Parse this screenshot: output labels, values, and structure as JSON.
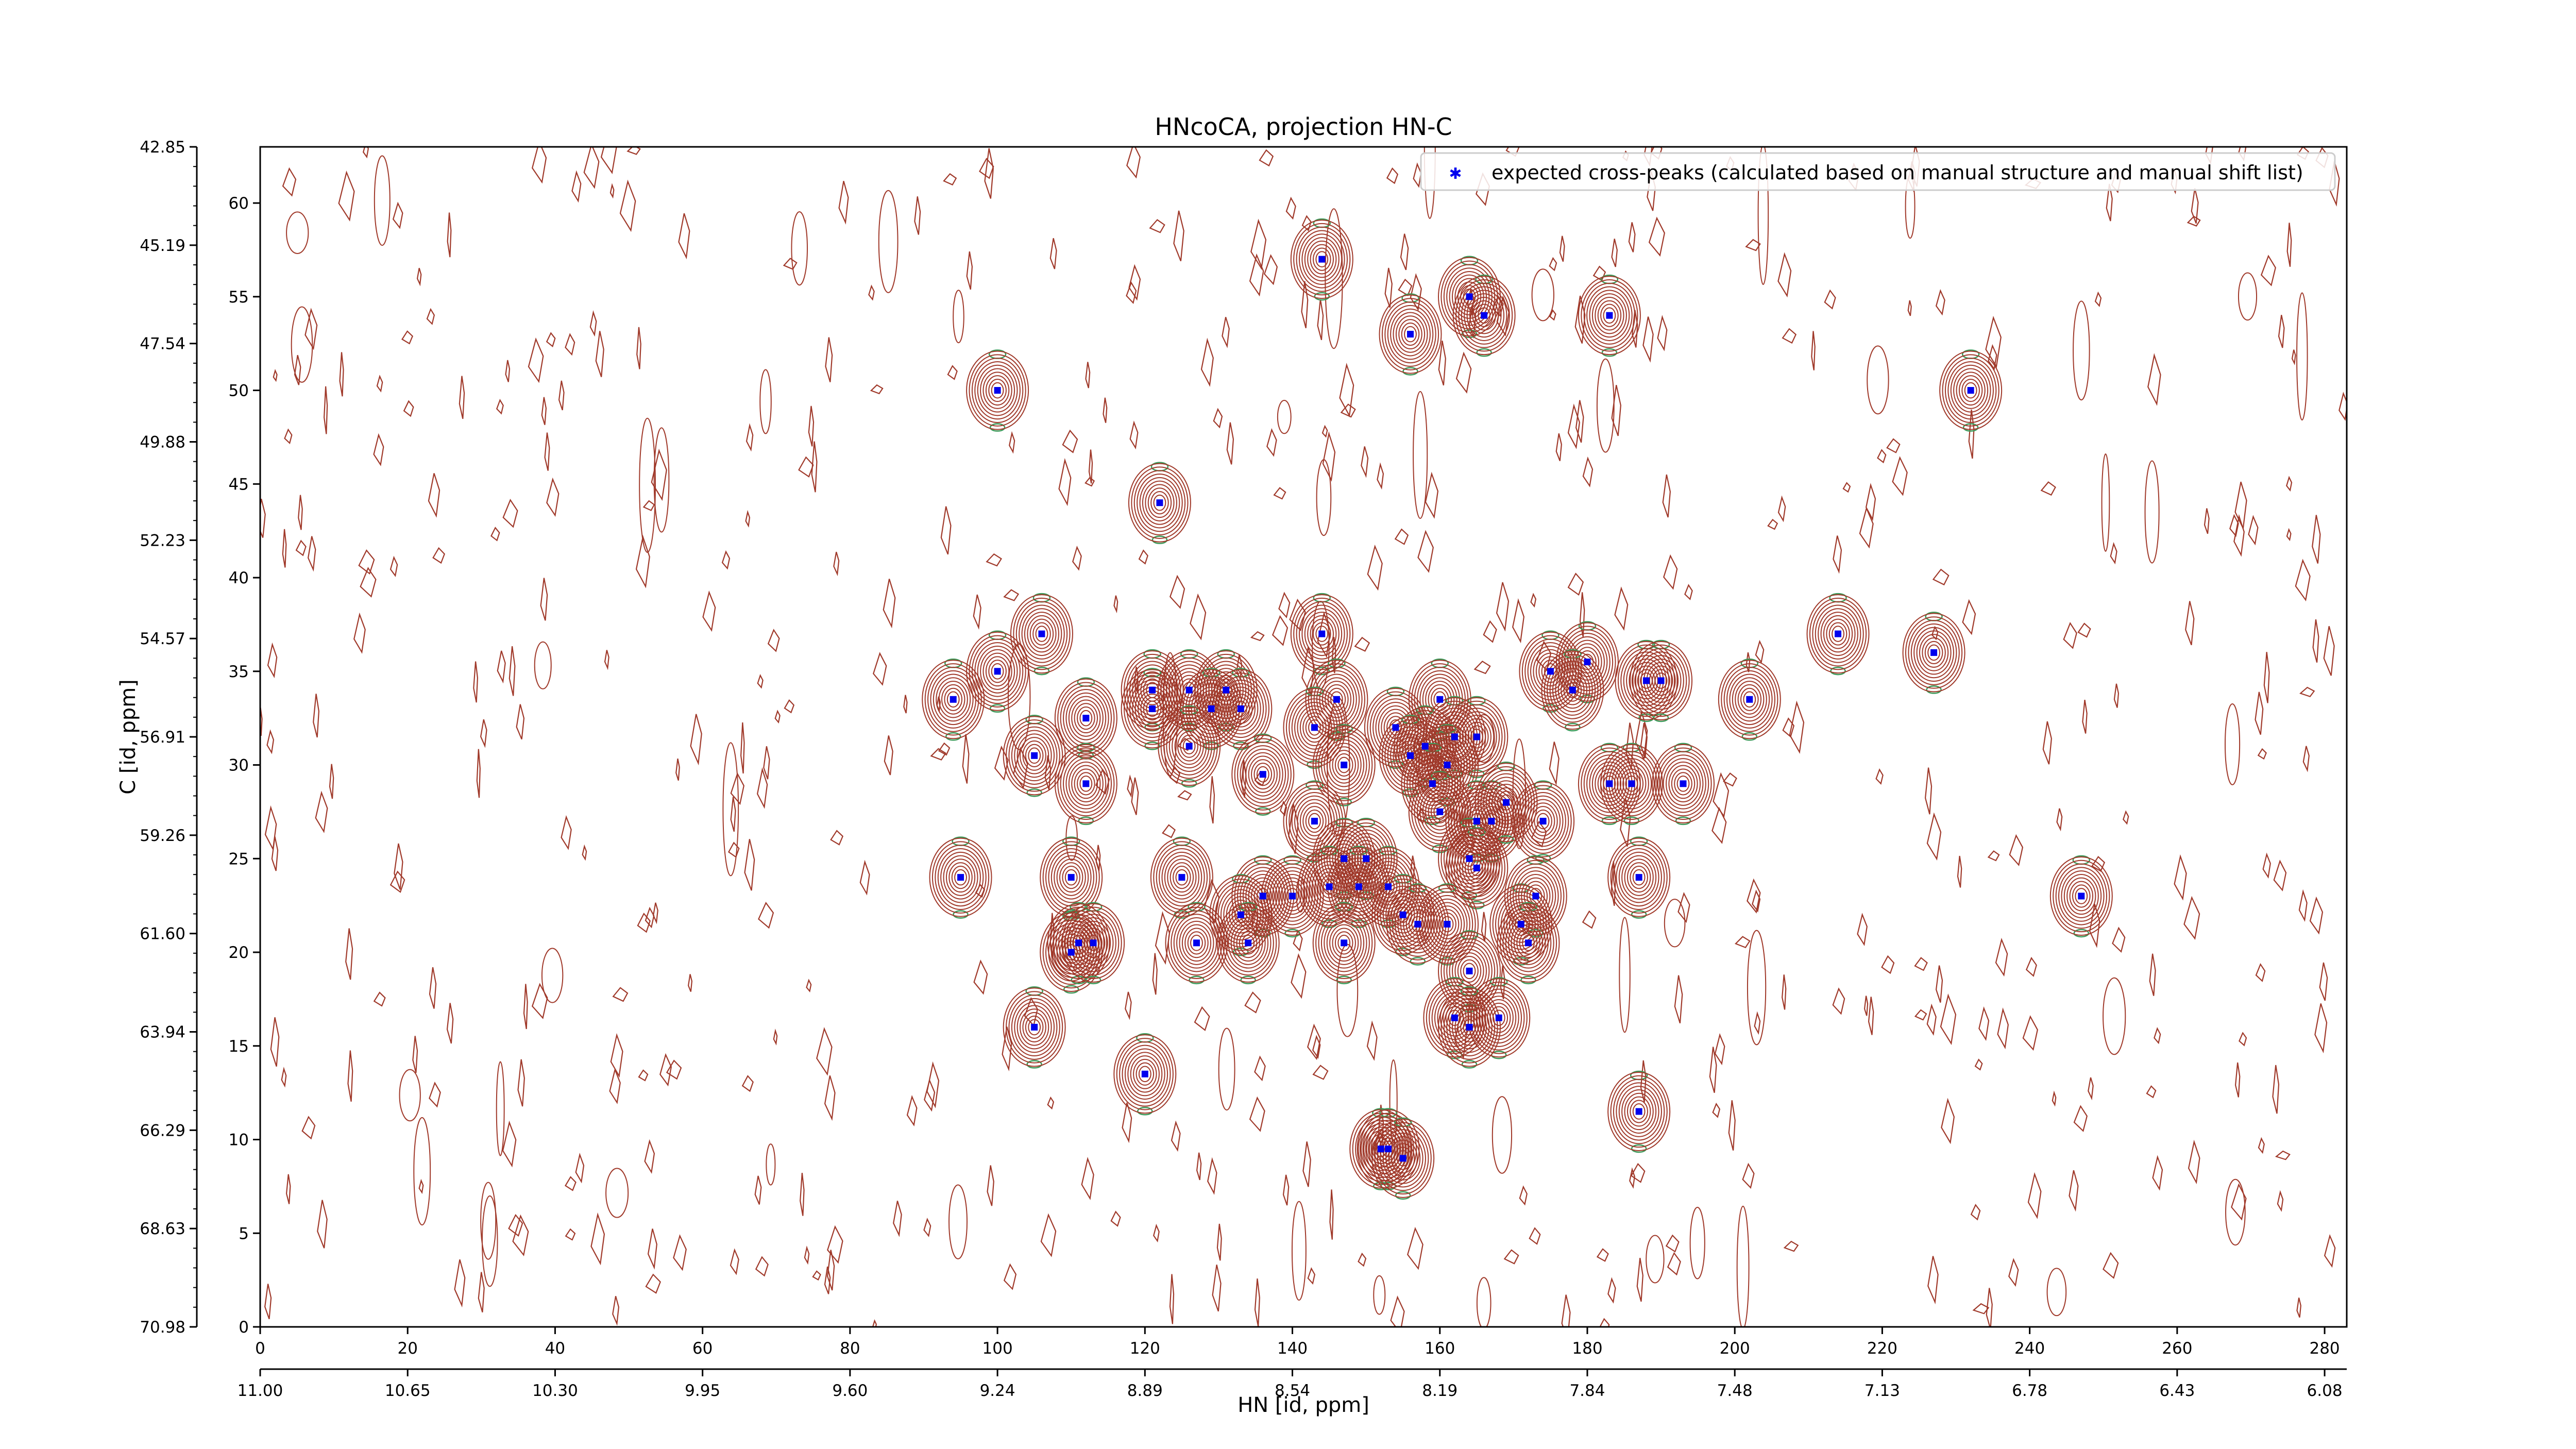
{
  "chart_data": {
    "type": "scatter",
    "title": "HNcoCA, projection HN-C",
    "xlabel": "HN [id, ppm]",
    "ylabel": "C [id, ppm]",
    "x_index_range": [
      0,
      283
    ],
    "y_index_range": [
      0,
      63
    ],
    "x_index_ticks": [
      0,
      20,
      40,
      60,
      80,
      100,
      120,
      140,
      160,
      180,
      200,
      220,
      240,
      260,
      280
    ],
    "y_index_ticks": [
      0,
      5,
      10,
      15,
      20,
      25,
      30,
      35,
      40,
      45,
      50,
      55,
      60
    ],
    "x_ppm_ticks": [
      "11.00",
      "10.65",
      "10.30",
      "9.95",
      "9.60",
      "9.24",
      "8.89",
      "8.54",
      "8.19",
      "7.84",
      "7.48",
      "7.13",
      "6.78",
      "6.43",
      "6.08"
    ],
    "y_ppm_ticks": [
      "70.98",
      "68.63",
      "66.29",
      "63.94",
      "61.60",
      "59.26",
      "56.91",
      "54.57",
      "52.23",
      "49.88",
      "47.54",
      "45.19",
      "42.85"
    ],
    "legend": {
      "label": "expected cross-peaks (calculated based on manual structure and manual shift list)",
      "position": "top-right"
    },
    "colors": {
      "positive_contour": "#a0392a",
      "negative_contour": "#3c9a5a",
      "peak_marker": "#0000ee",
      "axis": "#000000"
    },
    "series": [
      {
        "name": "expected cross-peaks (calculated based on manual structure and manual shift list)",
        "points": [
          [
            144,
            57
          ],
          [
            164,
            55
          ],
          [
            166,
            54
          ],
          [
            183,
            54
          ],
          [
            156,
            53
          ],
          [
            100,
            50
          ],
          [
            232,
            50
          ],
          [
            122,
            44
          ],
          [
            144,
            37
          ],
          [
            106,
            37
          ],
          [
            214,
            37
          ],
          [
            227,
            36
          ],
          [
            100,
            35
          ],
          [
            175,
            35
          ],
          [
            180,
            35.5
          ],
          [
            94,
            33.5
          ],
          [
            121,
            34
          ],
          [
            126,
            34
          ],
          [
            131,
            34
          ],
          [
            121,
            33
          ],
          [
            129,
            33
          ],
          [
            133,
            33
          ],
          [
            146,
            33.5
          ],
          [
            160,
            33.5
          ],
          [
            178,
            34
          ],
          [
            188,
            34.5
          ],
          [
            190,
            34.5
          ],
          [
            202,
            33.5
          ],
          [
            112,
            32.5
          ],
          [
            143,
            32
          ],
          [
            154,
            32
          ],
          [
            162,
            31.5
          ],
          [
            165,
            31.5
          ],
          [
            158,
            31
          ],
          [
            156,
            30.5
          ],
          [
            161,
            30
          ],
          [
            126,
            31
          ],
          [
            105,
            30.5
          ],
          [
            136,
            29.5
          ],
          [
            147,
            30
          ],
          [
            159,
            29
          ],
          [
            112,
            29
          ],
          [
            186,
            29
          ],
          [
            193,
            29
          ],
          [
            160,
            27.5
          ],
          [
            165,
            27
          ],
          [
            167,
            27
          ],
          [
            174,
            27
          ],
          [
            169,
            28
          ],
          [
            183,
            29
          ],
          [
            143,
            27
          ],
          [
            147,
            25
          ],
          [
            150,
            25
          ],
          [
            164,
            25
          ],
          [
            165,
            24.5
          ],
          [
            95,
            24
          ],
          [
            110,
            24
          ],
          [
            125,
            24
          ],
          [
            136,
            23
          ],
          [
            140,
            23
          ],
          [
            145,
            23.5
          ],
          [
            149,
            23.5
          ],
          [
            153,
            23.5
          ],
          [
            133,
            22
          ],
          [
            155,
            22
          ],
          [
            157,
            21.5
          ],
          [
            161,
            21.5
          ],
          [
            171,
            21.5
          ],
          [
            173,
            23
          ],
          [
            187,
            24
          ],
          [
            110,
            20
          ],
          [
            111,
            20.5
          ],
          [
            113,
            20.5
          ],
          [
            134,
            20.5
          ],
          [
            127,
            20.5
          ],
          [
            147,
            20.5
          ],
          [
            172,
            20.5
          ],
          [
            164,
            19
          ],
          [
            168,
            16.5
          ],
          [
            162,
            16.5
          ],
          [
            164,
            16
          ],
          [
            105,
            16
          ],
          [
            120,
            13.5
          ],
          [
            187,
            11.5
          ],
          [
            152,
            9.5
          ],
          [
            153,
            9.5
          ],
          [
            155,
            9
          ],
          [
            247,
            23
          ]
        ]
      }
    ]
  }
}
